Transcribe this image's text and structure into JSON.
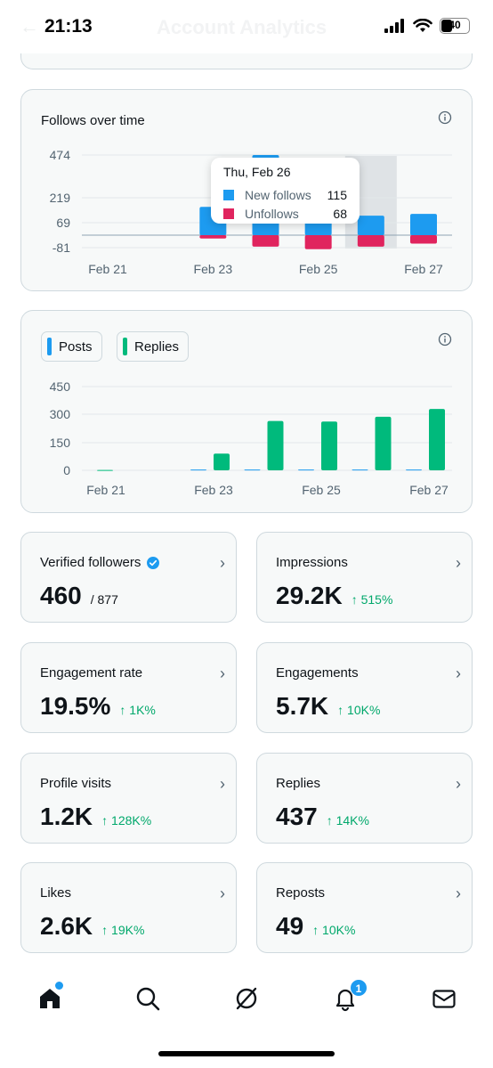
{
  "status_bar": {
    "time": "21:13",
    "battery": "40"
  },
  "header": {
    "title": "Account Analytics"
  },
  "follows_chart": {
    "title": "Follows over time",
    "tooltip": {
      "date": "Thu, Feb 26",
      "rows": [
        {
          "label": "New follows",
          "value": "115"
        },
        {
          "label": "Unfollows",
          "value": "68"
        }
      ]
    }
  },
  "posts_chart": {
    "legend": [
      {
        "label": "Posts",
        "color": "#1d9bf0"
      },
      {
        "label": "Replies",
        "color": "#00ba7c"
      }
    ]
  },
  "chart_data": [
    {
      "type": "bar",
      "title": "Follows over time",
      "y_ticks": [
        "474",
        "219",
        "69",
        "-81"
      ],
      "x_ticks": [
        "Feb 21",
        "Feb 23",
        "Feb 25",
        "Feb 27"
      ],
      "categories": [
        "Feb 21",
        "Feb 22",
        "Feb 23",
        "Feb 24",
        "Feb 25",
        "Feb 26",
        "Feb 27"
      ],
      "series": [
        {
          "name": "New follows",
          "color": "#1d9bf0",
          "values": [
            0,
            0,
            167,
            474,
            139,
            115,
            126
          ]
        },
        {
          "name": "Unfollows",
          "color": "#e0245e",
          "values": [
            0,
            0,
            -20,
            -68,
            -83,
            -68,
            -50
          ]
        }
      ],
      "ylim": [
        -81,
        474
      ],
      "highlighted_category": "Feb 26"
    },
    {
      "type": "bar",
      "y_ticks": [
        "450",
        "300",
        "150",
        "0"
      ],
      "x_ticks": [
        "Feb 21",
        "Feb 23",
        "Feb 25",
        "Feb 27"
      ],
      "categories": [
        "Feb 21",
        "Feb 22",
        "Feb 23",
        "Feb 24",
        "Feb 25",
        "Feb 26",
        "Feb 27"
      ],
      "series": [
        {
          "name": "Posts",
          "color": "#1d9bf0",
          "values": [
            0,
            0,
            4,
            4,
            4,
            4,
            4
          ]
        },
        {
          "name": "Replies",
          "color": "#00ba7c",
          "values": [
            2,
            0,
            90,
            265,
            262,
            288,
            330
          ]
        }
      ],
      "ylim": [
        0,
        450
      ]
    }
  ],
  "metrics": [
    {
      "label": "Verified followers",
      "value": "460",
      "sub": "/ 877",
      "change": "",
      "verified": true
    },
    {
      "label": "Impressions",
      "value": "29.2K",
      "sub": "",
      "change": "↑ 515%"
    },
    {
      "label": "Engagement rate",
      "value": "19.5%",
      "sub": "",
      "change": "↑ 1K%"
    },
    {
      "label": "Engagements",
      "value": "5.7K",
      "sub": "",
      "change": "↑ 10K%"
    },
    {
      "label": "Profile visits",
      "value": "1.2K",
      "sub": "",
      "change": "↑ 128K%"
    },
    {
      "label": "Replies",
      "value": "437",
      "sub": "",
      "change": "↑ 14K%"
    },
    {
      "label": "Likes",
      "value": "2.6K",
      "sub": "",
      "change": "↑ 19K%"
    },
    {
      "label": "Reposts",
      "value": "49",
      "sub": "",
      "change": "↑ 10K%"
    }
  ],
  "bottom_nav": {
    "items": [
      {
        "icon": "home-icon",
        "active": true
      },
      {
        "icon": "search-icon"
      },
      {
        "icon": "grok-icon"
      },
      {
        "icon": "bell-icon",
        "badge": "1"
      },
      {
        "icon": "mail-icon"
      }
    ]
  }
}
